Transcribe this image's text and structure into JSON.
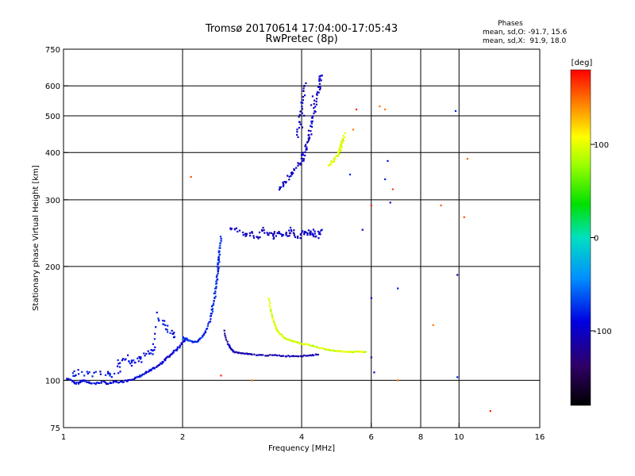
{
  "chart_data": {
    "type": "scatter",
    "title": "Tromsø 20170614 17:04:00-17:05:43",
    "subtitle": "RwPretec (8p)",
    "xlabel": "Frequency [MHz]",
    "ylabel": "Stationary phase Virtual Height [km]",
    "xscale": "log",
    "yscale": "log",
    "xlim": [
      1,
      16
    ],
    "ylim": [
      75,
      750
    ],
    "x_ticks": [
      1,
      2,
      4,
      6,
      8,
      10,
      16
    ],
    "x_tick_labels": [
      "1",
      "2",
      "4",
      "6",
      "8",
      "10",
      "16"
    ],
    "x_gridlines": [
      2,
      4,
      6,
      8,
      10
    ],
    "y_ticks": [
      75,
      100,
      200,
      300,
      400,
      500,
      600,
      750
    ],
    "y_tick_labels": [
      "75",
      "100",
      "200",
      "300",
      "400",
      "500",
      "600",
      "750"
    ],
    "y_gridlines": [
      100,
      200,
      300,
      400,
      500,
      600
    ],
    "colorbar": {
      "label": "[deg]",
      "range": [
        -180,
        180
      ],
      "ticks": [
        100,
        0,
        -100
      ],
      "tick_labels": [
        "100",
        "0",
        "-100"
      ]
    },
    "phase_stats": {
      "heading": "Phases",
      "line_o": "mean, sd,O: -91.7, 15.6",
      "line_x": "mean, sd,X:  91.9, 18.0"
    },
    "series": [
      {
        "name": "E trace",
        "phase": -100,
        "spread": 0.01,
        "points": [
          [
            1.02,
            101
          ],
          [
            1.05,
            100
          ],
          [
            1.08,
            98
          ],
          [
            1.12,
            100
          ],
          [
            1.15,
            99
          ],
          [
            1.2,
            98
          ],
          [
            1.25,
            99
          ],
          [
            1.3,
            98
          ],
          [
            1.35,
            99
          ],
          [
            1.4,
            99
          ],
          [
            1.45,
            100
          ],
          [
            1.5,
            101
          ],
          [
            1.55,
            102
          ],
          [
            1.6,
            104
          ],
          [
            1.65,
            106
          ],
          [
            1.7,
            108
          ],
          [
            1.75,
            110
          ],
          [
            1.8,
            113
          ],
          [
            1.85,
            116
          ],
          [
            1.9,
            119
          ],
          [
            1.95,
            122
          ],
          [
            2.0,
            126
          ],
          [
            2.05,
            129
          ]
        ]
      },
      {
        "name": "E scatter",
        "phase": -95,
        "spread": 0.04,
        "points": [
          [
            1.05,
            104
          ],
          [
            1.1,
            106
          ],
          [
            1.18,
            103
          ],
          [
            1.28,
            105
          ],
          [
            1.35,
            104
          ],
          [
            1.4,
            112
          ],
          [
            1.45,
            116
          ],
          [
            1.5,
            110
          ],
          [
            1.55,
            113
          ],
          [
            1.6,
            116
          ],
          [
            1.65,
            118
          ],
          [
            1.7,
            121
          ],
          [
            1.75,
            150
          ],
          [
            1.8,
            140
          ],
          [
            1.85,
            135
          ],
          [
            1.9,
            130
          ]
        ]
      },
      {
        "name": "E cusp",
        "phase": -85,
        "spread": 0.008,
        "points": [
          [
            2.0,
            130
          ],
          [
            2.05,
            128
          ],
          [
            2.1,
            127
          ],
          [
            2.15,
            126
          ],
          [
            2.2,
            128
          ],
          [
            2.25,
            131
          ],
          [
            2.3,
            136
          ],
          [
            2.35,
            145
          ],
          [
            2.4,
            160
          ],
          [
            2.43,
            175
          ],
          [
            2.45,
            190
          ],
          [
            2.47,
            205
          ],
          [
            2.48,
            220
          ],
          [
            2.5,
            240
          ],
          [
            2.47,
            210
          ],
          [
            2.45,
            195
          ],
          [
            2.4,
            165
          ],
          [
            2.36,
            148
          ]
        ]
      },
      {
        "name": "F1 O trace",
        "phase": -115,
        "spread": 0.006,
        "points": [
          [
            2.55,
            135
          ],
          [
            2.6,
            125
          ],
          [
            2.65,
            121
          ],
          [
            2.7,
            119
          ],
          [
            2.8,
            118
          ],
          [
            2.9,
            117.5
          ],
          [
            3.0,
            117
          ],
          [
            3.2,
            116.5
          ],
          [
            3.4,
            116.5
          ],
          [
            3.6,
            116
          ],
          [
            3.8,
            116
          ],
          [
            4.0,
            116
          ],
          [
            4.2,
            116.5
          ],
          [
            4.4,
            117
          ]
        ]
      },
      {
        "name": "F1 X trace",
        "phase": 95,
        "spread": 0.006,
        "points": [
          [
            3.3,
            165
          ],
          [
            3.35,
            152
          ],
          [
            3.4,
            143
          ],
          [
            3.45,
            137
          ],
          [
            3.5,
            134
          ],
          [
            3.6,
            130
          ],
          [
            3.7,
            128
          ],
          [
            3.8,
            127
          ],
          [
            3.9,
            126
          ],
          [
            4.0,
            125
          ],
          [
            4.2,
            124
          ],
          [
            4.4,
            122
          ],
          [
            4.6,
            121
          ],
          [
            4.8,
            120
          ],
          [
            5.0,
            119.5
          ],
          [
            5.2,
            119
          ],
          [
            5.4,
            119
          ],
          [
            5.6,
            119
          ],
          [
            5.8,
            119
          ]
        ]
      },
      {
        "name": "F2 spread band",
        "phase": -110,
        "spread": 0.03,
        "points": [
          [
            2.65,
            255
          ],
          [
            2.75,
            248
          ],
          [
            2.9,
            242
          ],
          [
            3.0,
            245
          ],
          [
            3.1,
            238
          ],
          [
            3.2,
            250
          ],
          [
            3.3,
            243
          ],
          [
            3.4,
            240
          ],
          [
            3.5,
            247
          ],
          [
            3.6,
            241
          ],
          [
            3.7,
            244
          ],
          [
            3.8,
            252
          ],
          [
            3.9,
            239
          ],
          [
            4.0,
            246
          ],
          [
            4.1,
            243
          ],
          [
            4.2,
            249
          ],
          [
            4.3,
            245
          ],
          [
            4.4,
            241
          ],
          [
            4.5,
            250
          ]
        ]
      },
      {
        "name": "F2 O trace",
        "phase": -110,
        "spread": 0.02,
        "points": [
          [
            3.5,
            320
          ],
          [
            3.6,
            330
          ],
          [
            3.7,
            342
          ],
          [
            3.8,
            355
          ],
          [
            3.9,
            368
          ],
          [
            4.0,
            382
          ],
          [
            4.05,
            395
          ],
          [
            4.1,
            410
          ],
          [
            4.15,
            430
          ],
          [
            4.2,
            450
          ],
          [
            4.25,
            480
          ],
          [
            4.3,
            510
          ],
          [
            4.35,
            545
          ],
          [
            4.4,
            580
          ],
          [
            4.45,
            620
          ],
          [
            4.5,
            640
          ],
          [
            3.9,
            440
          ],
          [
            3.95,
            480
          ],
          [
            4.0,
            520
          ],
          [
            4.05,
            570
          ],
          [
            4.1,
            610
          ]
        ]
      },
      {
        "name": "F2 X trace",
        "phase": 100,
        "spread": 0.015,
        "points": [
          [
            4.7,
            370
          ],
          [
            4.8,
            380
          ],
          [
            4.9,
            392
          ],
          [
            5.0,
            405
          ],
          [
            5.05,
            420
          ],
          [
            5.1,
            440
          ],
          [
            4.95,
            398
          ],
          [
            5.15,
            450
          ]
        ]
      },
      {
        "name": "scattered echoes",
        "phase": 160,
        "spread": 0.0,
        "points": [
          [
            2.1,
            345
          ],
          [
            2.5,
            103
          ],
          [
            3.0,
            100
          ],
          [
            5.4,
            460
          ],
          [
            5.5,
            520
          ],
          [
            6.0,
            290
          ],
          [
            6.3,
            530
          ],
          [
            6.5,
            520
          ],
          [
            6.8,
            320
          ],
          [
            7.0,
            100
          ],
          [
            8.6,
            140
          ],
          [
            9.0,
            290
          ],
          [
            10.3,
            270
          ],
          [
            10.5,
            385
          ],
          [
            12.0,
            83
          ]
        ]
      },
      {
        "name": "blue echoes",
        "phase": -105,
        "spread": 0.0,
        "points": [
          [
            6.0,
            165
          ],
          [
            6.0,
            115
          ],
          [
            6.1,
            105
          ],
          [
            6.5,
            340
          ],
          [
            6.6,
            380
          ],
          [
            6.7,
            295
          ],
          [
            7.0,
            175
          ],
          [
            9.8,
            515
          ],
          [
            9.9,
            190
          ],
          [
            9.9,
            102
          ],
          [
            5.3,
            350
          ],
          [
            5.7,
            250
          ]
        ]
      }
    ]
  }
}
